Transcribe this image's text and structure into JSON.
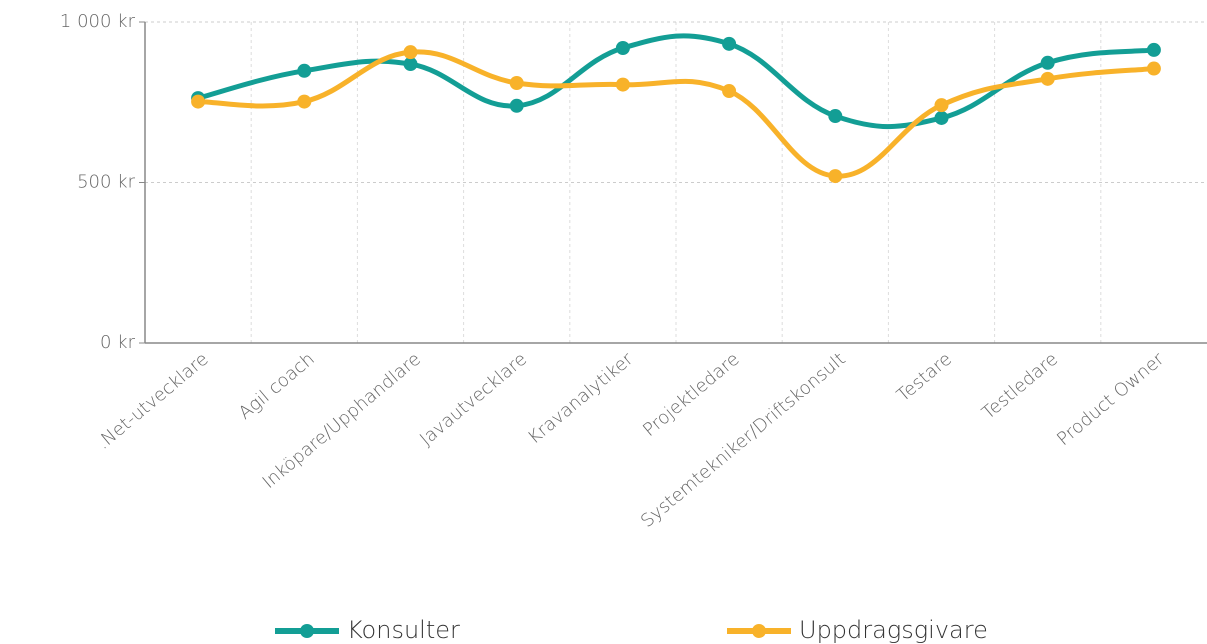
{
  "chart_data": {
    "type": "line",
    "categories": [
      ".Net-utvecklare",
      "Agil coach",
      "Inköpare/Upphandlare",
      "Javautvecklare",
      "Kravanalytiker",
      "Projektledare",
      "Systemtekniker/Driftskonsult",
      "Testare",
      "Testledare",
      "Product Owner"
    ],
    "series": [
      {
        "name": "Konsulter",
        "color": "#139e95",
        "values": [
          763,
          848,
          869,
          739,
          919,
          932,
          707,
          701,
          873,
          913
        ]
      },
      {
        "name": "Uppdragsgivare",
        "color": "#f8b22a",
        "values": [
          752,
          752,
          906,
          810,
          805,
          785,
          520,
          741,
          823,
          855
        ]
      }
    ],
    "ylim": [
      0,
      1000
    ],
    "yticks": [
      {
        "value": 0,
        "label": "0 kr"
      },
      {
        "value": 500,
        "label": "500 kr"
      },
      {
        "value": 1000,
        "label": "1 000 kr"
      }
    ],
    "grid": true,
    "legend": "bottom"
  }
}
